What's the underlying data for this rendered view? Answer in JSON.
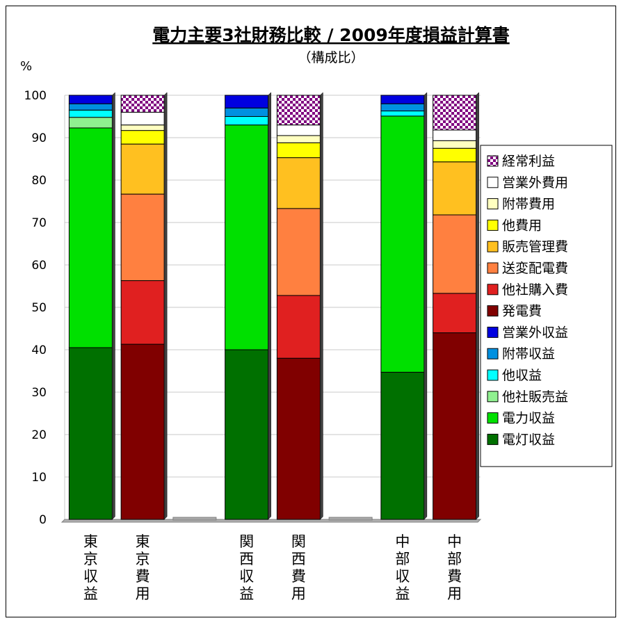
{
  "chart_data": {
    "type": "bar",
    "stacked": true,
    "title": "電力主要3社財務比較 / 2009年度損益計算書",
    "subtitle": "（構成比）",
    "ylabel": "%",
    "ylim": [
      0,
      100
    ],
    "yticks": [
      "0",
      "10",
      "20",
      "30",
      "40",
      "50",
      "60",
      "70",
      "80",
      "90",
      "100"
    ],
    "grid": true,
    "legend_position": "right",
    "categories": [
      "東京収益",
      "東京費用",
      "関西収益",
      "関西費用",
      "中部収益",
      "中部費用"
    ],
    "category_labels": [
      [
        "東",
        "京",
        "収",
        "益"
      ],
      [
        "東",
        "京",
        "費",
        "用"
      ],
      [
        "関",
        "西",
        "収",
        "益"
      ],
      [
        "関",
        "西",
        "費",
        "用"
      ],
      [
        "中",
        "部",
        "収",
        "益"
      ],
      [
        "中",
        "部",
        "費",
        "用"
      ]
    ],
    "series": [
      {
        "name": "電灯収益",
        "color": "#007000",
        "values": [
          40.5,
          0,
          40.0,
          0,
          34.7,
          0
        ]
      },
      {
        "name": "電力収益",
        "color": "#00e000",
        "values": [
          51.8,
          0,
          53.0,
          0,
          60.4,
          0
        ]
      },
      {
        "name": "他社販売益",
        "color": "#90f090",
        "values": [
          2.5,
          0,
          0,
          0,
          0,
          0
        ]
      },
      {
        "name": "他収益",
        "color": "#00ffff",
        "values": [
          1.7,
          0,
          2.0,
          0,
          1.2,
          0
        ]
      },
      {
        "name": "附帯収益",
        "color": "#0090e0",
        "values": [
          1.5,
          0,
          2.0,
          0,
          1.7,
          0
        ]
      },
      {
        "name": "営業外収益",
        "color": "#0000e0",
        "values": [
          2.0,
          0,
          3.0,
          0,
          2.0,
          0
        ]
      },
      {
        "name": "発電費",
        "color": "#800000",
        "values": [
          0,
          41.3,
          0,
          38.0,
          0,
          44.0
        ]
      },
      {
        "name": "他社購入費",
        "color": "#e02020",
        "values": [
          0,
          15.0,
          0,
          14.8,
          0,
          9.3
        ]
      },
      {
        "name": "送変配電費",
        "color": "#ff8040",
        "values": [
          0,
          20.4,
          0,
          20.5,
          0,
          18.5
        ]
      },
      {
        "name": "販売管理費",
        "color": "#ffc020",
        "values": [
          0,
          11.8,
          0,
          12.0,
          0,
          12.5
        ]
      },
      {
        "name": "他費用",
        "color": "#ffff00",
        "values": [
          0,
          3.2,
          0,
          3.5,
          0,
          3.2
        ]
      },
      {
        "name": "附帯費用",
        "color": "#ffffc0",
        "values": [
          0,
          1.3,
          0,
          1.7,
          0,
          1.8
        ]
      },
      {
        "name": "営業外費用",
        "color": "#ffffff",
        "values": [
          0,
          3.0,
          0,
          2.5,
          0,
          2.5
        ]
      },
      {
        "name": "経常利益",
        "color": "#800080",
        "pattern": "checker",
        "values": [
          0,
          4.0,
          0,
          7.0,
          0,
          8.2
        ]
      }
    ],
    "legend_order": [
      "経常利益",
      "営業外費用",
      "附帯費用",
      "他費用",
      "販売管理費",
      "送変配電費",
      "他社購入費",
      "発電費",
      "営業外収益",
      "附帯収益",
      "他収益",
      "他社販売益",
      "電力収益",
      "電灯収益"
    ]
  }
}
